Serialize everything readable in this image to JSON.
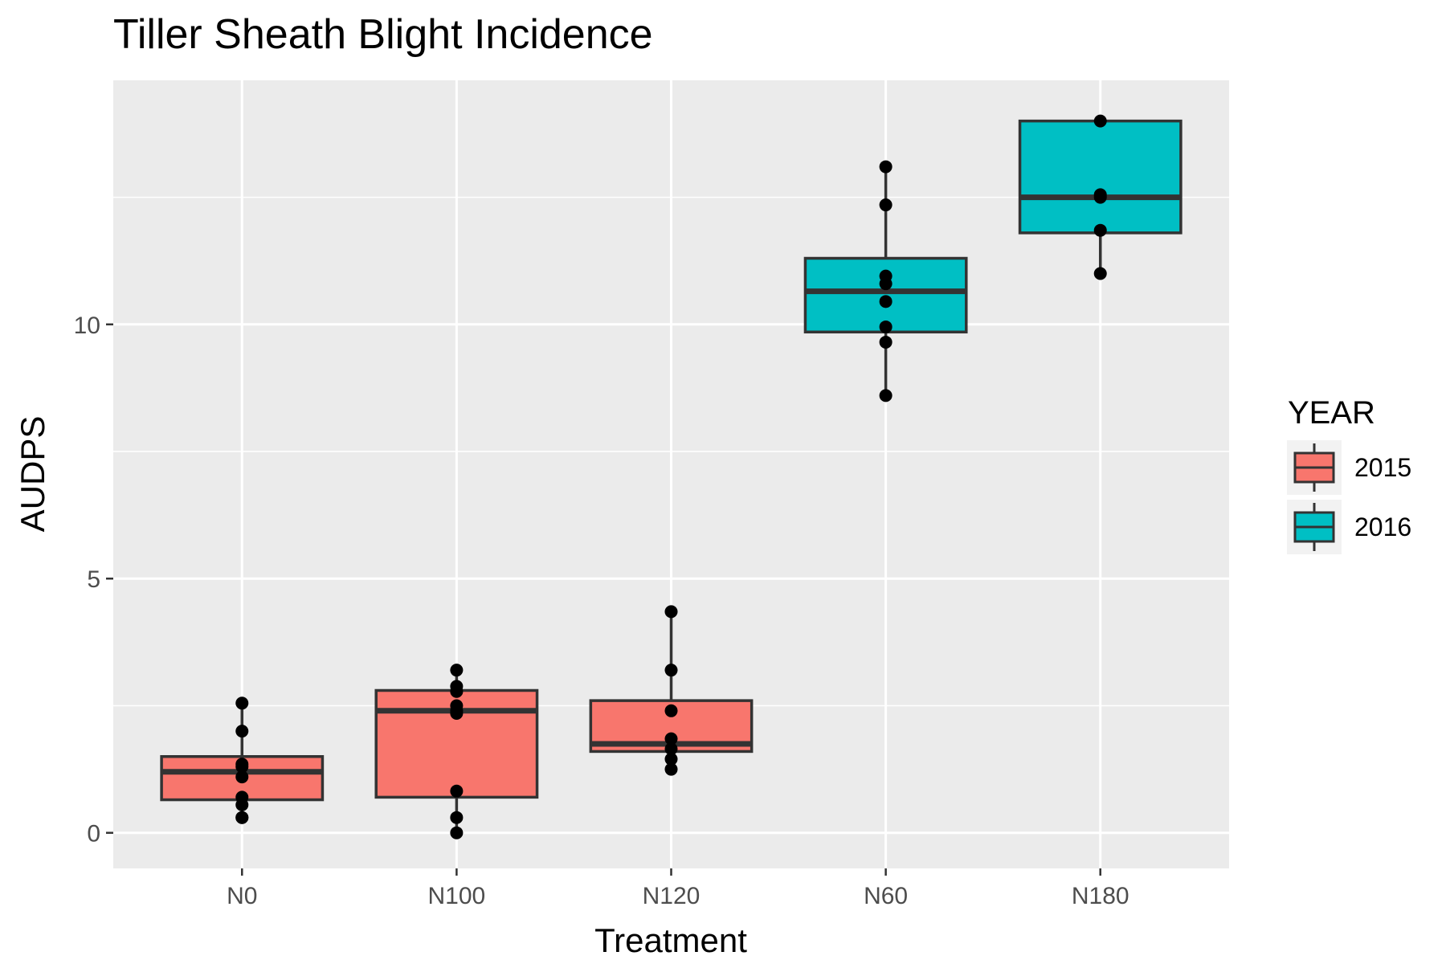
{
  "chart_data": {
    "type": "boxplot",
    "title": "Tiller Sheath Blight Incidence",
    "xlabel": "Treatment",
    "ylabel": "AUDPS",
    "categories": [
      "N0",
      "N100",
      "N120",
      "N60",
      "N180"
    ],
    "ylim": [
      -0.7,
      14.8
    ],
    "yticks": [
      0,
      5,
      10
    ],
    "grid": true,
    "legend": {
      "title": "YEAR",
      "position": "right",
      "entries": [
        {
          "label": "2015",
          "color": "#F8766D"
        },
        {
          "label": "2016",
          "color": "#00BFC4"
        }
      ]
    },
    "boxes": [
      {
        "category": "N0",
        "year": "2015",
        "min": 0.3,
        "q1": 0.65,
        "median": 1.2,
        "q3": 1.5,
        "max": 2.55,
        "points": [
          0.3,
          0.3,
          0.55,
          0.7,
          1.1,
          1.3,
          1.35,
          2.0,
          2.55
        ]
      },
      {
        "category": "N100",
        "year": "2015",
        "min": 0.0,
        "q1": 0.7,
        "median": 2.4,
        "q3": 2.8,
        "max": 3.2,
        "points": [
          0.0,
          0.3,
          0.82,
          2.35,
          2.4,
          2.5,
          2.78,
          2.88,
          3.2
        ]
      },
      {
        "category": "N120",
        "year": "2015",
        "min": 1.25,
        "q1": 1.6,
        "median": 1.75,
        "q3": 2.6,
        "max": 4.35,
        "points": [
          1.25,
          1.45,
          1.65,
          1.85,
          2.4,
          3.2,
          4.35
        ]
      },
      {
        "category": "N60",
        "year": "2016",
        "min": 8.6,
        "q1": 9.85,
        "median": 10.65,
        "q3": 11.3,
        "max": 13.1,
        "points": [
          8.6,
          9.65,
          9.95,
          10.45,
          10.8,
          10.95,
          12.35,
          13.1
        ]
      },
      {
        "category": "N180",
        "year": "2016",
        "min": 11.0,
        "q1": 11.8,
        "median": 12.5,
        "q3": 14.0,
        "max": 14.0,
        "points": [
          11.0,
          11.85,
          12.5,
          12.55,
          14.0
        ]
      }
    ]
  }
}
